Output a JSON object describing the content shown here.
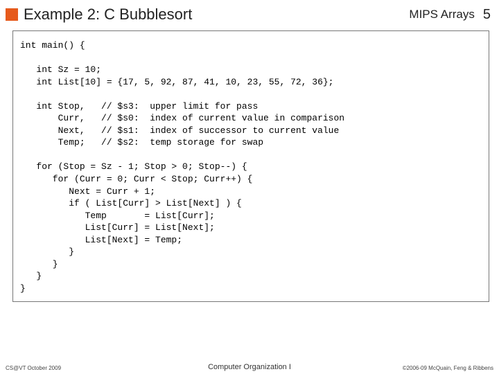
{
  "header": {
    "title": "Example 2: C Bubblesort",
    "right": "MIPS Arrays",
    "pagenum": "5",
    "bullet_color": "#e65a1c"
  },
  "code": {
    "text": "int main() {\n\n   int Sz = 10;\n   int List[10] = {17, 5, 92, 87, 41, 10, 23, 55, 72, 36};\n\n   int Stop,   // $s3:  upper limit for pass\n       Curr,   // $s0:  index of current value in comparison\n       Next,   // $s1:  index of successor to current value\n       Temp;   // $s2:  temp storage for swap\n\n   for (Stop = Sz - 1; Stop > 0; Stop--) {\n      for (Curr = 0; Curr < Stop; Curr++) {\n         Next = Curr + 1;\n         if ( List[Curr] > List[Next] ) {\n            Temp       = List[Curr];\n            List[Curr] = List[Next];\n            List[Next] = Temp;\n         }\n      }\n   }\n}"
  },
  "footer": {
    "left": "CS@VT October 2009",
    "center": "Computer Organization I",
    "right": "©2006-09  McQuain, Feng & Ribbens"
  }
}
